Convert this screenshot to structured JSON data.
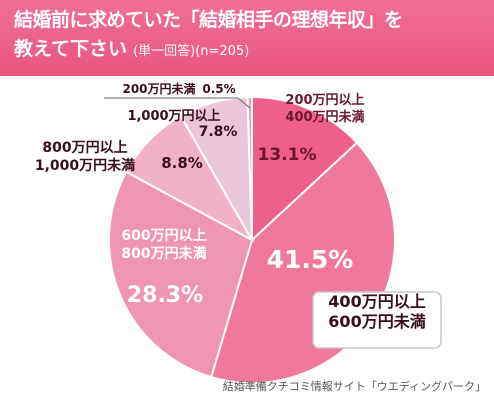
{
  "header": {
    "title_line1": "結婚前に求めていた「結婚相手の理想年収」を",
    "title_line2": "教えて下さい",
    "subtitle": "(単一回答)(n=205)",
    "background": "#ec5f88"
  },
  "chart_data": {
    "type": "pie",
    "unit": "%",
    "slices": [
      {
        "label_lines": [
          "200万円以上",
          "400万円未満"
        ],
        "value": 13.1,
        "value_text": "13.1%",
        "color": "#ee5f8b"
      },
      {
        "label_lines": [
          "400万円以上",
          "600万円未満"
        ],
        "value": 41.5,
        "value_text": "41.5%",
        "color": "#f0789c"
      },
      {
        "label_lines": [
          "600万円以上",
          "800万円未満"
        ],
        "value": 28.3,
        "value_text": "28.3%",
        "color": "#f094b4"
      },
      {
        "label_lines": [
          "800万円以上",
          "1,000万円未満"
        ],
        "value": 8.8,
        "value_text": "8.8%",
        "color": "#f2b1c9"
      },
      {
        "label_lines": [
          "1,000万円以上"
        ],
        "value": 7.8,
        "value_text": "7.8%",
        "color": "#ebc6d9"
      },
      {
        "label_lines": [
          "200万円未満"
        ],
        "value": 0.5,
        "value_text": "0.5%",
        "color": "#e2a3be"
      }
    ]
  },
  "footer": {
    "credit": "結婚準備クチコミ情報サイト「ウエディングパーク」"
  }
}
